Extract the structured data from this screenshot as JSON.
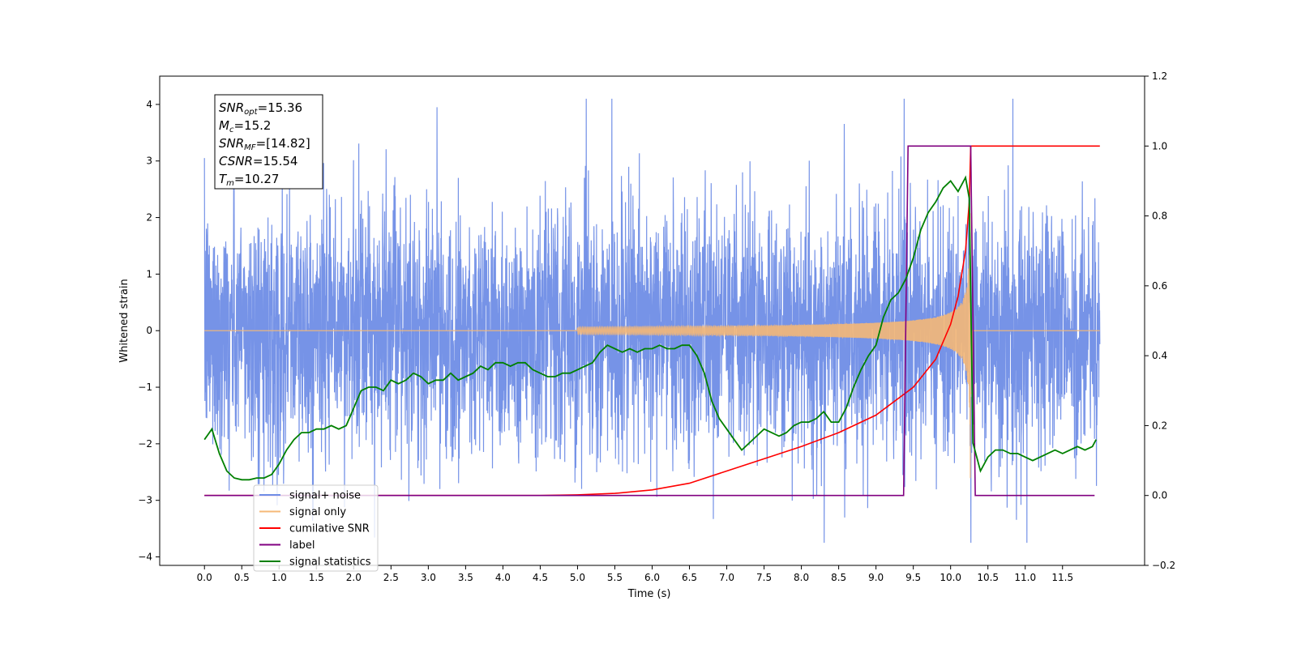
{
  "chart_data": {
    "type": "line",
    "xlabel": "Time (s)",
    "ylabel": "Whitened strain",
    "xlim": [
      -0.6,
      12.6
    ],
    "ylim": [
      -4.15,
      4.5
    ],
    "ylim_right": [
      -0.2,
      1.2
    ],
    "x_ticks": [
      0.0,
      0.5,
      1.0,
      1.5,
      2.0,
      2.5,
      3.0,
      3.5,
      4.0,
      4.5,
      5.0,
      5.5,
      6.0,
      6.5,
      7.0,
      7.5,
      8.0,
      8.5,
      9.0,
      9.5,
      10.0,
      10.5,
      11.0,
      11.5
    ],
    "x_tick_labels": [
      "0.0",
      "0.5",
      "1.0",
      "1.5",
      "2.0",
      "2.5",
      "3.0",
      "3.5",
      "4.0",
      "4.5",
      "5.0",
      "5.5",
      "6.0",
      "6.5",
      "7.0",
      "7.5",
      "8.0",
      "8.5",
      "9.0",
      "9.5",
      "10.0",
      "10.5",
      "11.0",
      "11.5"
    ],
    "y_ticks": [
      -4,
      -3,
      -2,
      -1,
      0,
      1,
      2,
      3,
      4
    ],
    "y_tick_labels": [
      "−4",
      "−3",
      "−2",
      "−1",
      "0",
      "1",
      "2",
      "3",
      "4"
    ],
    "y_right_ticks": [
      -0.2,
      0.0,
      0.2,
      0.4,
      0.6,
      0.8,
      1.0,
      1.2
    ],
    "y_right_tick_labels": [
      "−0.2",
      "0.0",
      "0.2",
      "0.4",
      "0.6",
      "0.8",
      "1.0",
      "1.2"
    ],
    "grid": false,
    "legend_position": "lower-left",
    "series": [
      {
        "name": "signal+ noise",
        "color": "#6f8de6",
        "axis": "left",
        "noise_sigma": 1.1,
        "x_start": 0.0,
        "x_end": 12.0
      },
      {
        "name": "signal only",
        "color": "#f5b877",
        "axis": "left",
        "chirp_start": 5.0,
        "chirp_peak_time": 10.27,
        "peak_amplitude": 3.4
      },
      {
        "name": "cumilative SNR",
        "color": "#ff0000",
        "axis": "right",
        "x": [
          0,
          4.5,
          5.0,
          5.5,
          6.0,
          6.5,
          7.0,
          7.5,
          8.0,
          8.5,
          9.0,
          9.5,
          9.8,
          10.0,
          10.1,
          10.2,
          10.25,
          10.27,
          12.0
        ],
        "y": [
          0,
          0,
          0.002,
          0.006,
          0.016,
          0.035,
          0.07,
          0.105,
          0.14,
          0.18,
          0.23,
          0.31,
          0.39,
          0.49,
          0.57,
          0.7,
          0.84,
          1.0,
          1.0
        ]
      },
      {
        "name": "label",
        "color": "#800080",
        "axis": "right",
        "x": [
          0,
          9.37,
          9.43,
          10.27,
          10.33,
          11.93
        ],
        "y": [
          0,
          0,
          1,
          1,
          0,
          0
        ]
      },
      {
        "name": "signal statistics",
        "color": "#008000",
        "axis": "right",
        "x": [
          0,
          0.1,
          0.2,
          0.3,
          0.4,
          0.5,
          0.6,
          0.7,
          0.8,
          0.9,
          1.0,
          1.1,
          1.2,
          1.3,
          1.4,
          1.5,
          1.6,
          1.7,
          1.8,
          1.9,
          2.0,
          2.1,
          2.2,
          2.3,
          2.4,
          2.5,
          2.6,
          2.7,
          2.8,
          2.9,
          3.0,
          3.1,
          3.2,
          3.3,
          3.4,
          3.5,
          3.6,
          3.7,
          3.8,
          3.9,
          4.0,
          4.1,
          4.2,
          4.3,
          4.4,
          4.5,
          4.6,
          4.7,
          4.8,
          4.9,
          5.0,
          5.1,
          5.2,
          5.3,
          5.4,
          5.5,
          5.6,
          5.7,
          5.8,
          5.9,
          6.0,
          6.1,
          6.2,
          6.3,
          6.4,
          6.5,
          6.6,
          6.7,
          6.8,
          6.9,
          7.0,
          7.1,
          7.2,
          7.3,
          7.4,
          7.5,
          7.6,
          7.7,
          7.8,
          7.9,
          8.0,
          8.1,
          8.2,
          8.3,
          8.4,
          8.5,
          8.6,
          8.7,
          8.8,
          8.9,
          9.0,
          9.1,
          9.2,
          9.3,
          9.4,
          9.5,
          9.6,
          9.7,
          9.8,
          9.9,
          10.0,
          10.1,
          10.2,
          10.25,
          10.3,
          10.4,
          10.5,
          10.6,
          10.7,
          10.8,
          10.9,
          11.0,
          11.1,
          11.2,
          11.3,
          11.4,
          11.5,
          11.6,
          11.7,
          11.8,
          11.9,
          11.95
        ],
        "y": [
          0.16,
          0.19,
          0.12,
          0.07,
          0.05,
          0.045,
          0.045,
          0.05,
          0.05,
          0.06,
          0.09,
          0.13,
          0.16,
          0.18,
          0.18,
          0.19,
          0.19,
          0.2,
          0.19,
          0.2,
          0.25,
          0.3,
          0.31,
          0.31,
          0.3,
          0.33,
          0.32,
          0.33,
          0.35,
          0.34,
          0.32,
          0.33,
          0.33,
          0.35,
          0.33,
          0.34,
          0.35,
          0.37,
          0.36,
          0.38,
          0.38,
          0.37,
          0.38,
          0.38,
          0.36,
          0.35,
          0.34,
          0.34,
          0.35,
          0.35,
          0.36,
          0.37,
          0.38,
          0.41,
          0.43,
          0.42,
          0.41,
          0.42,
          0.41,
          0.42,
          0.42,
          0.43,
          0.42,
          0.42,
          0.43,
          0.43,
          0.4,
          0.35,
          0.27,
          0.22,
          0.19,
          0.16,
          0.13,
          0.15,
          0.17,
          0.19,
          0.18,
          0.17,
          0.18,
          0.2,
          0.21,
          0.21,
          0.22,
          0.24,
          0.21,
          0.21,
          0.25,
          0.31,
          0.36,
          0.4,
          0.43,
          0.51,
          0.56,
          0.58,
          0.62,
          0.68,
          0.76,
          0.81,
          0.84,
          0.88,
          0.9,
          0.87,
          0.91,
          0.85,
          0.15,
          0.07,
          0.11,
          0.13,
          0.13,
          0.12,
          0.12,
          0.11,
          0.1,
          0.11,
          0.12,
          0.13,
          0.12,
          0.13,
          0.14,
          0.13,
          0.14,
          0.16
        ]
      }
    ],
    "annotation": {
      "lines": [
        {
          "base": "SNR",
          "sub": "opt",
          "value": "=15.36"
        },
        {
          "base": "M",
          "sub": "c",
          "value": "=15.2"
        },
        {
          "base": "SNR",
          "sub": "MF",
          "value": "=[14.82]"
        },
        {
          "base": "CSNR",
          "sub": "",
          "value": "=15.54"
        },
        {
          "base": "T",
          "sub": "m",
          "value": "=10.27"
        }
      ]
    }
  }
}
